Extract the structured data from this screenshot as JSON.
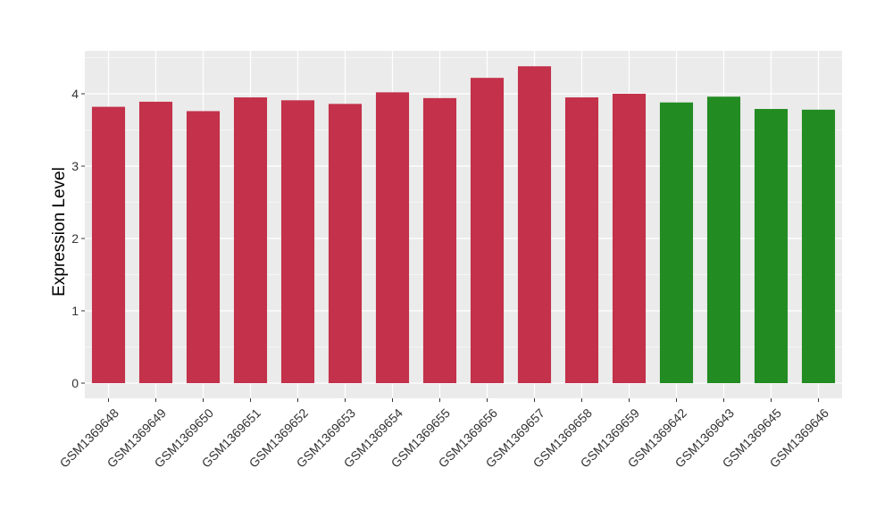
{
  "chart_data": {
    "type": "bar",
    "title": "",
    "xlabel": "",
    "ylabel": "Expression Level",
    "ylim": [
      0,
      4.6
    ],
    "yticks": [
      0,
      1,
      2,
      3,
      4
    ],
    "grid": true,
    "categories": [
      "GSM1369648",
      "GSM1369649",
      "GSM1369650",
      "GSM1369651",
      "GSM1369652",
      "GSM1369653",
      "GSM1369654",
      "GSM1369655",
      "GSM1369656",
      "GSM1369657",
      "GSM1369658",
      "GSM1369659",
      "GSM1369642",
      "GSM1369643",
      "GSM1369645",
      "GSM1369646"
    ],
    "values": [
      3.82,
      3.89,
      3.76,
      3.95,
      3.91,
      3.86,
      4.02,
      3.94,
      4.22,
      4.38,
      3.95,
      4.0,
      3.88,
      3.96,
      3.79,
      3.78
    ],
    "bar_colors": [
      "#c3314a",
      "#c3314a",
      "#c3314a",
      "#c3314a",
      "#c3314a",
      "#c3314a",
      "#c3314a",
      "#c3314a",
      "#c3314a",
      "#c3314a",
      "#c3314a",
      "#c3314a",
      "#228b22",
      "#228b22",
      "#228b22",
      "#228b22"
    ],
    "panel_background": "#ebebeb",
    "grid_color": "#ffffff"
  }
}
